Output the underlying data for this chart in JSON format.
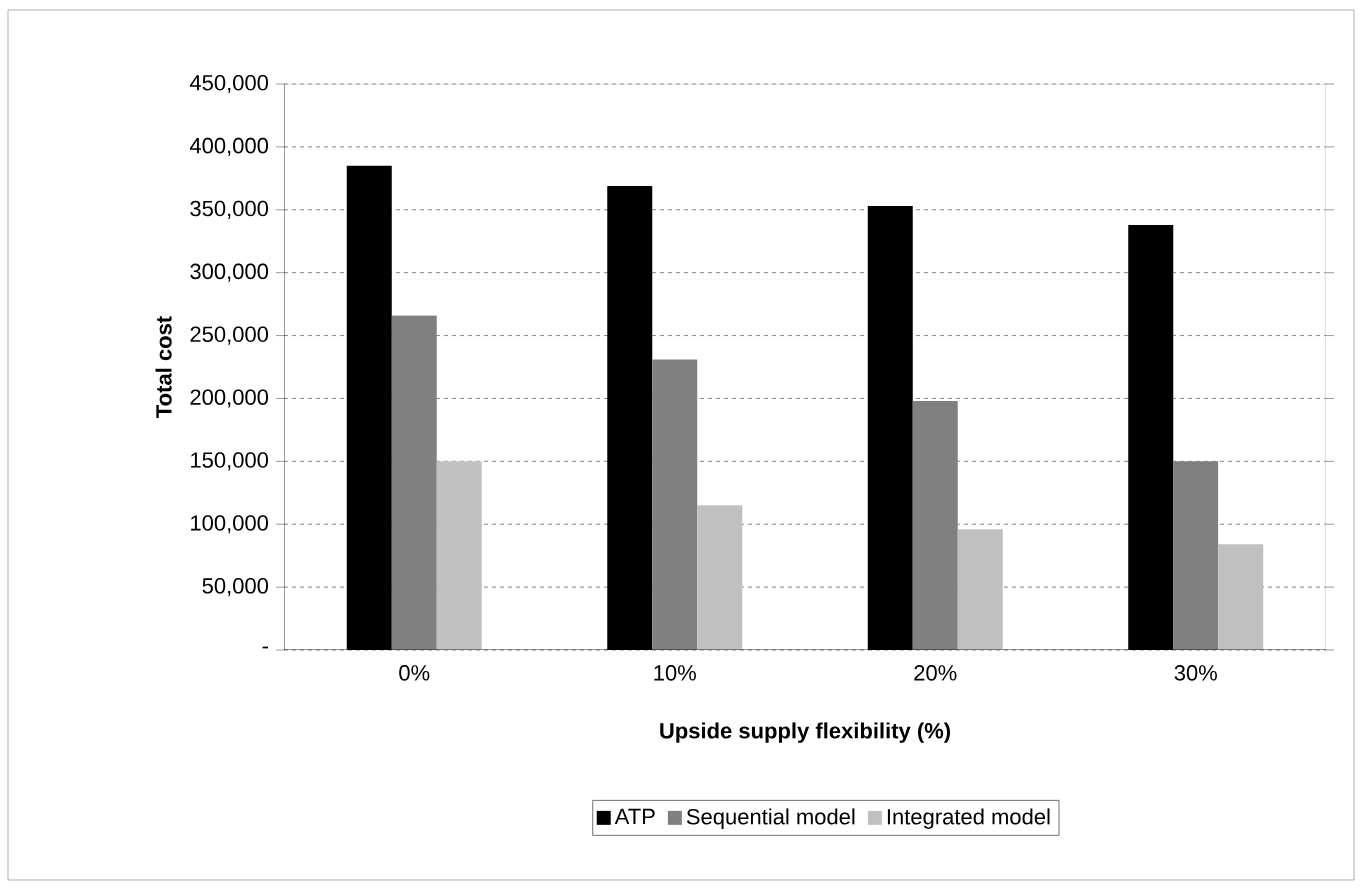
{
  "chart_data": {
    "type": "bar",
    "xlabel": "Upside supply flexibility (%)",
    "ylabel": "Total cost",
    "categories": [
      "0%",
      "10%",
      "20%",
      "30%"
    ],
    "series": [
      {
        "name": "ATP",
        "color": "#000000",
        "values": [
          385000,
          369000,
          353000,
          338000
        ]
      },
      {
        "name": "Sequential model",
        "color": "#808080",
        "values": [
          266000,
          231000,
          198000,
          150000
        ]
      },
      {
        "name": "Integrated model",
        "color": "#c0c0c0",
        "values": [
          150000,
          115000,
          96000,
          84000
        ]
      }
    ],
    "ylim": [
      0,
      450000
    ],
    "yticks": [
      {
        "value": 0,
        "label": "-"
      },
      {
        "value": 50000,
        "label": "50,000"
      },
      {
        "value": 100000,
        "label": "100,000"
      },
      {
        "value": 150000,
        "label": "150,000"
      },
      {
        "value": 200000,
        "label": "200,000"
      },
      {
        "value": 250000,
        "label": "250,000"
      },
      {
        "value": 300000,
        "label": "300,000"
      },
      {
        "value": 350000,
        "label": "350,000"
      },
      {
        "value": 400000,
        "label": "400,000"
      },
      {
        "value": 450000,
        "label": "450,000"
      }
    ],
    "grid": "y",
    "legend": "bottom"
  }
}
